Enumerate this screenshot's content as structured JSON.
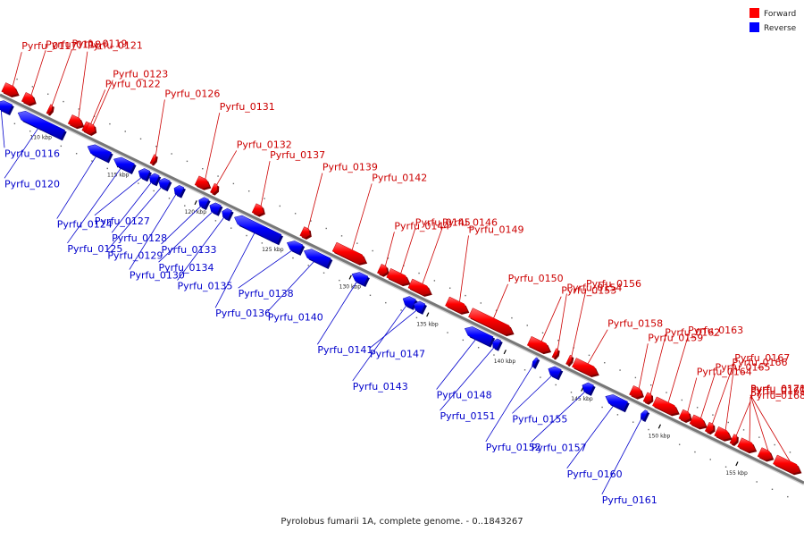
{
  "caption": "Pyrolobus fumarii 1A, complete genome. - 0..1843267",
  "legend": {
    "forward": {
      "label": "Forward",
      "color": "#ff0000"
    },
    "reverse": {
      "label": "Reverse",
      "color": "#0000ff"
    }
  },
  "axis": {
    "start_kbp": 107,
    "end_kbp": 159,
    "ticks": [
      {
        "kbp": 110,
        "label": "110 kbp"
      },
      {
        "kbp": 115,
        "label": "115 kbp"
      },
      {
        "kbp": 120,
        "label": "120 kbp"
      },
      {
        "kbp": 125,
        "label": "125 kbp"
      },
      {
        "kbp": 130,
        "label": "130 kbp"
      },
      {
        "kbp": 135,
        "label": "135 kbp"
      },
      {
        "kbp": 140,
        "label": "140 kbp"
      },
      {
        "kbp": 145,
        "label": "145 kbp"
      },
      {
        "kbp": 150,
        "label": "150 kbp"
      },
      {
        "kbp": 155,
        "label": "155 kbp"
      }
    ]
  },
  "genes": [
    {
      "id": "Pyrfu_0116",
      "strand": "reverse",
      "start_kbp": 107.0,
      "end_kbp": 107.9
    },
    {
      "id": "Pyrfu_0117",
      "strand": "forward",
      "start_kbp": 107.0,
      "end_kbp": 107.9
    },
    {
      "id": "Pyrfu_0118",
      "strand": "forward",
      "start_kbp": 108.3,
      "end_kbp": 109.0
    },
    {
      "id": "Pyrfu_0119",
      "strand": "forward",
      "start_kbp": 109.9,
      "end_kbp": 110.1
    },
    {
      "id": "Pyrfu_0120",
      "strand": "reverse",
      "start_kbp": 108.4,
      "end_kbp": 111.3
    },
    {
      "id": "Pyrfu_0121",
      "strand": "forward",
      "start_kbp": 111.3,
      "end_kbp": 112.1
    },
    {
      "id": "Pyrfu_0122",
      "strand": "forward",
      "start_kbp": 112.2,
      "end_kbp": 112.8
    },
    {
      "id": "Pyrfu_0123",
      "strand": "forward",
      "start_kbp": 112.4,
      "end_kbp": 112.9
    },
    {
      "id": "Pyrfu_0124",
      "strand": "reverse",
      "start_kbp": 112.9,
      "end_kbp": 114.3
    },
    {
      "id": "Pyrfu_0125",
      "strand": "reverse",
      "start_kbp": 114.6,
      "end_kbp": 115.8
    },
    {
      "id": "Pyrfu_0126",
      "strand": "forward",
      "start_kbp": 116.6,
      "end_kbp": 116.8
    },
    {
      "id": "Pyrfu_0127",
      "strand": "reverse",
      "start_kbp": 116.2,
      "end_kbp": 116.8
    },
    {
      "id": "Pyrfu_0128",
      "strand": "reverse",
      "start_kbp": 116.9,
      "end_kbp": 117.4
    },
    {
      "id": "Pyrfu_0129",
      "strand": "reverse",
      "start_kbp": 117.5,
      "end_kbp": 118.1
    },
    {
      "id": "Pyrfu_0130",
      "strand": "reverse",
      "start_kbp": 118.5,
      "end_kbp": 119.0
    },
    {
      "id": "Pyrfu_0131",
      "strand": "forward",
      "start_kbp": 119.5,
      "end_kbp": 120.3
    },
    {
      "id": "Pyrfu_0132",
      "strand": "forward",
      "start_kbp": 120.5,
      "end_kbp": 120.8
    },
    {
      "id": "Pyrfu_0133",
      "strand": "reverse",
      "start_kbp": 120.1,
      "end_kbp": 120.6
    },
    {
      "id": "Pyrfu_0134",
      "strand": "reverse",
      "start_kbp": 120.8,
      "end_kbp": 121.4
    },
    {
      "id": "Pyrfu_0135",
      "strand": "reverse",
      "start_kbp": 121.6,
      "end_kbp": 122.1
    },
    {
      "id": "Pyrfu_0136",
      "strand": "reverse",
      "start_kbp": 122.4,
      "end_kbp": 125.3
    },
    {
      "id": "Pyrfu_0137",
      "strand": "forward",
      "start_kbp": 123.2,
      "end_kbp": 123.8
    },
    {
      "id": "Pyrfu_0138",
      "strand": "reverse",
      "start_kbp": 125.8,
      "end_kbp": 126.7
    },
    {
      "id": "Pyrfu_0139",
      "strand": "forward",
      "start_kbp": 126.3,
      "end_kbp": 126.8
    },
    {
      "id": "Pyrfu_0140",
      "strand": "reverse",
      "start_kbp": 126.9,
      "end_kbp": 128.5
    },
    {
      "id": "Pyrfu_0141",
      "strand": "reverse",
      "start_kbp": 130.0,
      "end_kbp": 130.9
    },
    {
      "id": "Pyrfu_0142",
      "strand": "forward",
      "start_kbp": 128.4,
      "end_kbp": 130.4
    },
    {
      "id": "Pyrfu_0143",
      "strand": "reverse",
      "start_kbp": 133.3,
      "end_kbp": 134.0
    },
    {
      "id": "Pyrfu_0144",
      "strand": "forward",
      "start_kbp": 131.3,
      "end_kbp": 131.8
    },
    {
      "id": "Pyrfu_0145",
      "strand": "forward",
      "start_kbp": 131.9,
      "end_kbp": 133.2
    },
    {
      "id": "Pyrfu_0146",
      "strand": "forward",
      "start_kbp": 133.3,
      "end_kbp": 134.6
    },
    {
      "id": "Pyrfu_0147",
      "strand": "reverse",
      "start_kbp": 134.0,
      "end_kbp": 134.6
    },
    {
      "id": "Pyrfu_0148",
      "strand": "reverse",
      "start_kbp": 137.3,
      "end_kbp": 139.0
    },
    {
      "id": "Pyrfu_0149",
      "strand": "forward",
      "start_kbp": 135.7,
      "end_kbp": 137.0
    },
    {
      "id": "Pyrfu_0150",
      "strand": "forward",
      "start_kbp": 137.2,
      "end_kbp": 139.9
    },
    {
      "id": "Pyrfu_0151",
      "strand": "reverse",
      "start_kbp": 139.1,
      "end_kbp": 139.5
    },
    {
      "id": "Pyrfu_0152",
      "strand": "reverse",
      "start_kbp": 141.7,
      "end_kbp": 141.9
    },
    {
      "id": "Pyrfu_0153",
      "strand": "forward",
      "start_kbp": 141.0,
      "end_kbp": 142.3
    },
    {
      "id": "Pyrfu_0154",
      "strand": "forward",
      "start_kbp": 142.6,
      "end_kbp": 142.8
    },
    {
      "id": "Pyrfu_0155",
      "strand": "reverse",
      "start_kbp": 142.7,
      "end_kbp": 143.4
    },
    {
      "id": "Pyrfu_0156",
      "strand": "forward",
      "start_kbp": 143.5,
      "end_kbp": 143.7
    },
    {
      "id": "Pyrfu_0157",
      "strand": "reverse",
      "start_kbp": 144.9,
      "end_kbp": 145.5
    },
    {
      "id": "Pyrfu_0158",
      "strand": "forward",
      "start_kbp": 143.9,
      "end_kbp": 145.4
    },
    {
      "id": "Pyrfu_0159",
      "strand": "forward",
      "start_kbp": 147.6,
      "end_kbp": 148.3
    },
    {
      "id": "Pyrfu_0160",
      "strand": "reverse",
      "start_kbp": 146.4,
      "end_kbp": 147.7
    },
    {
      "id": "Pyrfu_0161",
      "strand": "reverse",
      "start_kbp": 148.7,
      "end_kbp": 149.0
    },
    {
      "id": "Pyrfu_0162",
      "strand": "forward",
      "start_kbp": 148.5,
      "end_kbp": 148.9
    },
    {
      "id": "Pyrfu_0163",
      "strand": "forward",
      "start_kbp": 149.1,
      "end_kbp": 150.6
    },
    {
      "id": "Pyrfu_0164",
      "strand": "forward",
      "start_kbp": 150.8,
      "end_kbp": 151.4
    },
    {
      "id": "Pyrfu_0165",
      "strand": "forward",
      "start_kbp": 151.5,
      "end_kbp": 152.4
    },
    {
      "id": "Pyrfu_0166",
      "strand": "forward",
      "start_kbp": 152.5,
      "end_kbp": 152.9
    },
    {
      "id": "Pyrfu_0167",
      "strand": "forward",
      "start_kbp": 153.1,
      "end_kbp": 154.0
    },
    {
      "id": "Pyrfu_0168",
      "strand": "forward",
      "start_kbp": 154.1,
      "end_kbp": 154.4
    },
    {
      "id": "Pyrfu_0169",
      "strand": "forward",
      "start_kbp": 154.6,
      "end_kbp": 155.6
    },
    {
      "id": "Pyrfu_0170",
      "strand": "forward",
      "start_kbp": 155.9,
      "end_kbp": 156.7
    },
    {
      "id": "Pyrfu_0171",
      "strand": "forward",
      "start_kbp": 156.9,
      "end_kbp": 158.5
    }
  ]
}
